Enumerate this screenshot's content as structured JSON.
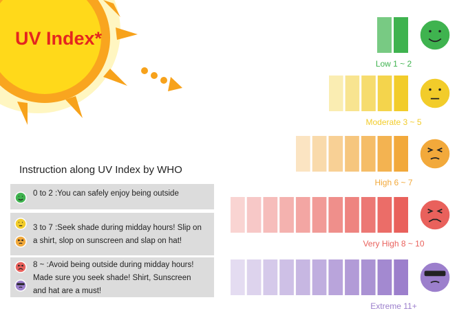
{
  "header": {
    "title": "UV Index*"
  },
  "levels": [
    {
      "label": "Low 1 ~ 2",
      "color": "#3fb34f"
    },
    {
      "label": "Moderate 3 ~ 5",
      "color": "#f2cc2a"
    },
    {
      "label": "High 6 ~ 7",
      "color": "#f2a93b"
    },
    {
      "label": "Very High 8 ~ 10",
      "color": "#e9615c"
    },
    {
      "label": "Extreme 11+",
      "color": "#9c7fcc"
    }
  ],
  "instructions": {
    "title": "Instruction along UV Index by WHO",
    "items": [
      {
        "lines": [
          "0 to 2 :You can safely enjoy being outside"
        ]
      },
      {
        "lines": [
          "3 to 7 :Seek shade during midday hours! Slip on",
          "a shirt, slop on sunscreen and slap on hat!"
        ]
      },
      {
        "lines": [
          "8 ~  :Avoid being outside during midday hours!",
          "Made sure you seek shade! Shirt, Sunscreen",
          "and hat are a must!"
        ]
      }
    ]
  }
}
